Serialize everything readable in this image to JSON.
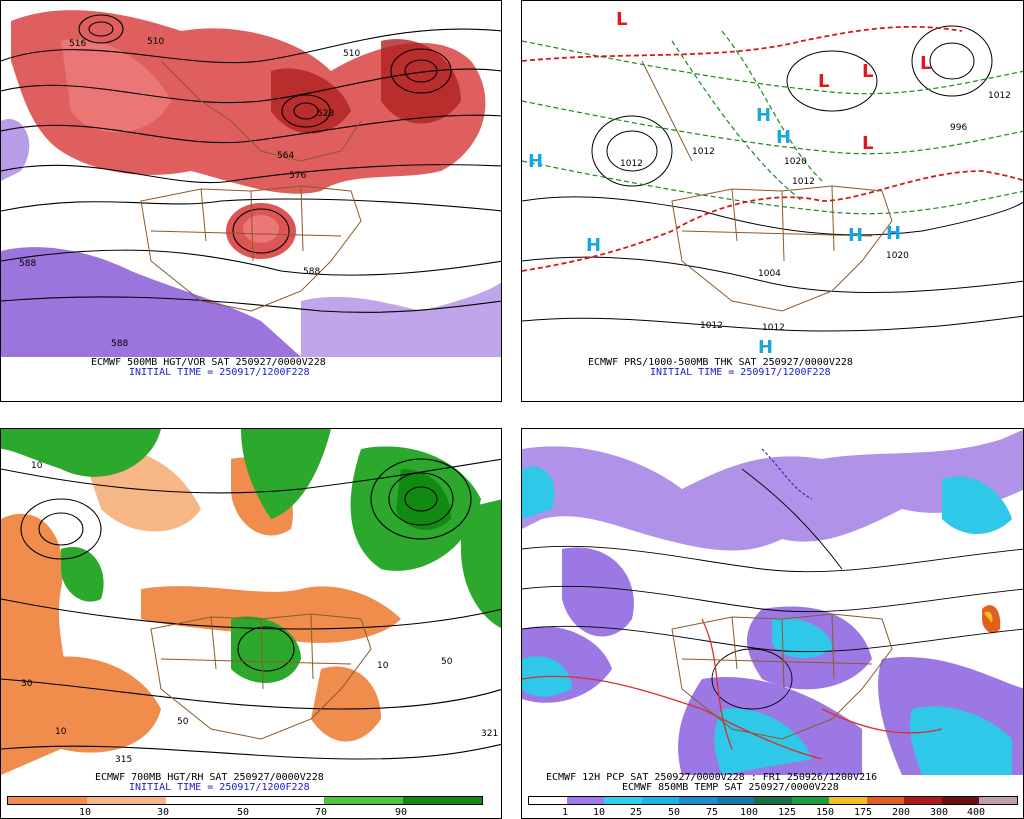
{
  "panels": [
    {
      "id": "p1",
      "line1": "ECMWF 500MB HGT/VOR SAT 250927/0000V228",
      "line2": "INITIAL TIME = 250917/1200F228",
      "contour_labels": [
        "516",
        "510",
        "510",
        "528",
        "564",
        "576",
        "588",
        "588",
        "588"
      ]
    },
    {
      "id": "p2",
      "line1": "ECMWF PRS/1000-500MB THK SAT 250927/0000V228",
      "line2": "INITIAL TIME = 250917/1200F228",
      "pressure_labels": [
        "1012",
        "1012",
        "1020",
        "1004",
        "1012",
        "1012",
        "996",
        "1020",
        "1012",
        "1012"
      ],
      "centers": [
        "L",
        "L",
        "L",
        "L",
        "L",
        "H",
        "H",
        "H",
        "H",
        "H",
        "H",
        "H"
      ]
    },
    {
      "id": "p3",
      "line1": "ECMWF 700MB HGT/RH SAT 250927/0000V228",
      "line2": "INITIAL TIME = 250917/1200F228",
      "colorbar": {
        "ticks": [
          "10",
          "30",
          "50",
          "70",
          "90"
        ],
        "colors": [
          "#f08c4c",
          "#f6b686",
          "#ffffff",
          "#ffffff",
          "#4cc43c",
          "#108a10"
        ]
      },
      "contour_labels": [
        "10",
        "50",
        "30",
        "10",
        "50",
        "315",
        "321",
        "10"
      ]
    },
    {
      "id": "p4",
      "line1": "ECMWF 12H PCP SAT 250927/0000V228 : FRI 250926/1200V216",
      "line2": "ECMWF 850MB TEMP SAT 250927/0000V228",
      "colorbar": {
        "ticks": [
          "1",
          "10",
          "25",
          "50",
          "75",
          "100",
          "125",
          "150",
          "175",
          "200",
          "300",
          "400"
        ],
        "colors": [
          "#ffffff",
          "#a07ae8",
          "#2ad0f0",
          "#1ab4e8",
          "#1890d0",
          "#147ab0",
          "#1a6e48",
          "#18a040",
          "#f0c020",
          "#e06020",
          "#b01818",
          "#6a1010",
          "#c0a0a8"
        ]
      }
    }
  ],
  "colors": {
    "vorticity_red": "#d42a2a",
    "vorticity_pink": "#f08080",
    "negative_vor_purple": "#8a5cd8",
    "borders_brown": "#8b5a2b",
    "thickness_green": "#1a8a1a",
    "thickness_red": "#d81818",
    "high_cyan": "#18a8e0",
    "low_red": "#e01818",
    "rh_green": "#2ca82c",
    "rh_orange": "#f08c4c",
    "pcp_purple": "#9c78e4",
    "pcp_cyan": "#30c8e8",
    "temp_red_line": "#d83030"
  }
}
